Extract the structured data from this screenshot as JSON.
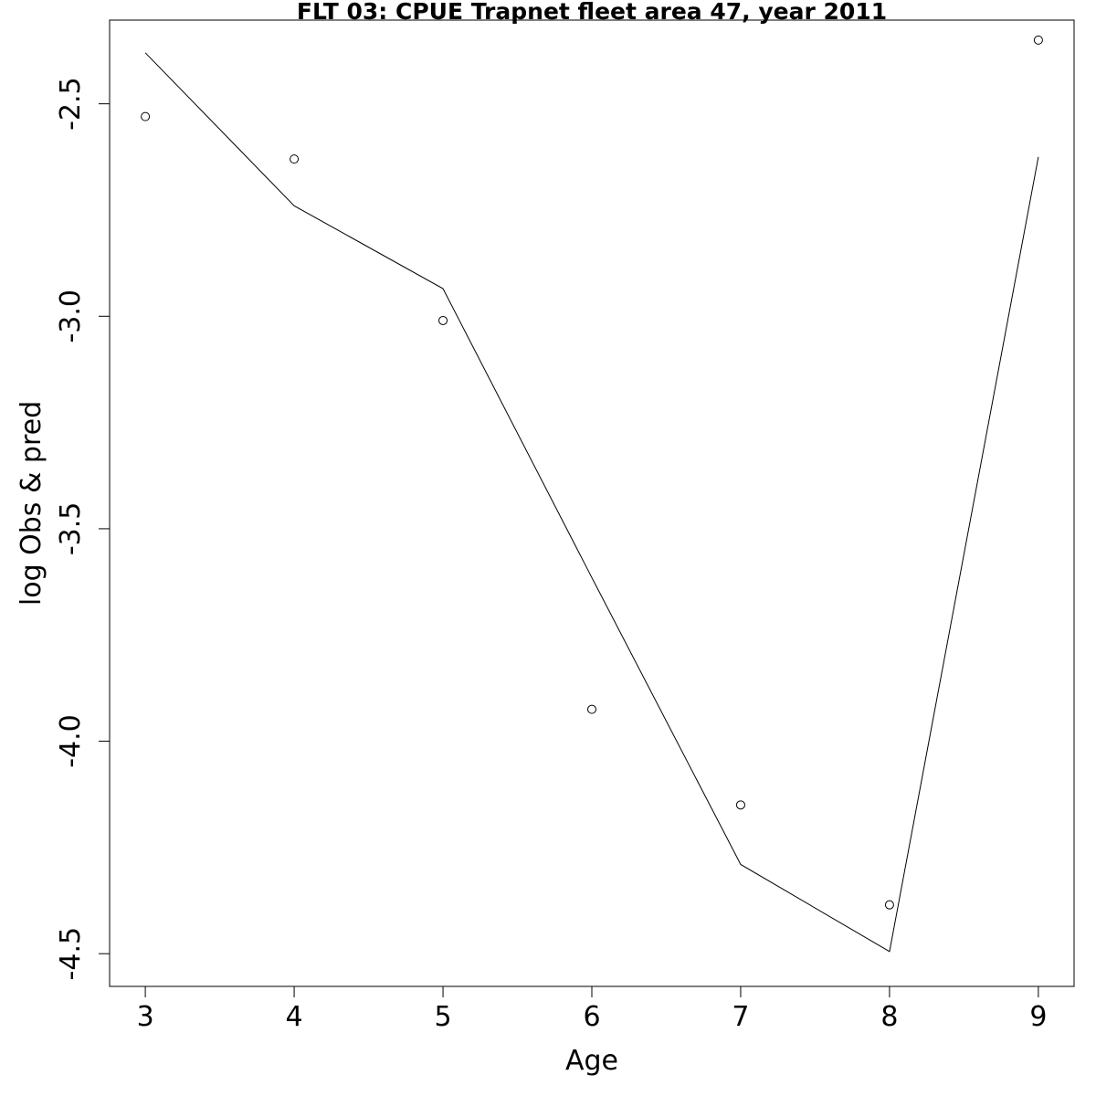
{
  "chart_data": {
    "type": "line",
    "title": "FLT 03: CPUE Trapnet fleet area 47, year 2011",
    "xlabel": "Age",
    "ylabel": "log Obs & pred",
    "x": [
      3,
      4,
      5,
      6,
      7,
      8,
      9
    ],
    "series": [
      {
        "kind": "points",
        "marker": "open-circle",
        "values": [
          -2.53,
          -2.63,
          -3.01,
          -3.925,
          -4.15,
          -4.385,
          -2.35
        ]
      },
      {
        "kind": "line",
        "values": [
          -2.38,
          -2.74,
          -2.935,
          -3.615,
          -4.29,
          -4.495,
          -2.625
        ]
      }
    ],
    "xlim": [
      2.76,
      9.24
    ],
    "ylim": [
      -4.577,
      -2.303
    ],
    "xticks": [
      "3",
      "4",
      "5",
      "6",
      "7",
      "8",
      "9"
    ],
    "yticks": [
      "-4.5",
      "-4.0",
      "-3.5",
      "-3.0",
      "-2.5"
    ],
    "xtick_values": [
      3,
      4,
      5,
      6,
      7,
      8,
      9
    ],
    "ytick_values": [
      -4.5,
      -4.0,
      -3.5,
      -3.0,
      -2.5
    ],
    "grid": false,
    "legend": "none",
    "colors": {
      "line": "#000000",
      "points": "#000000",
      "background": "#ffffff"
    }
  }
}
